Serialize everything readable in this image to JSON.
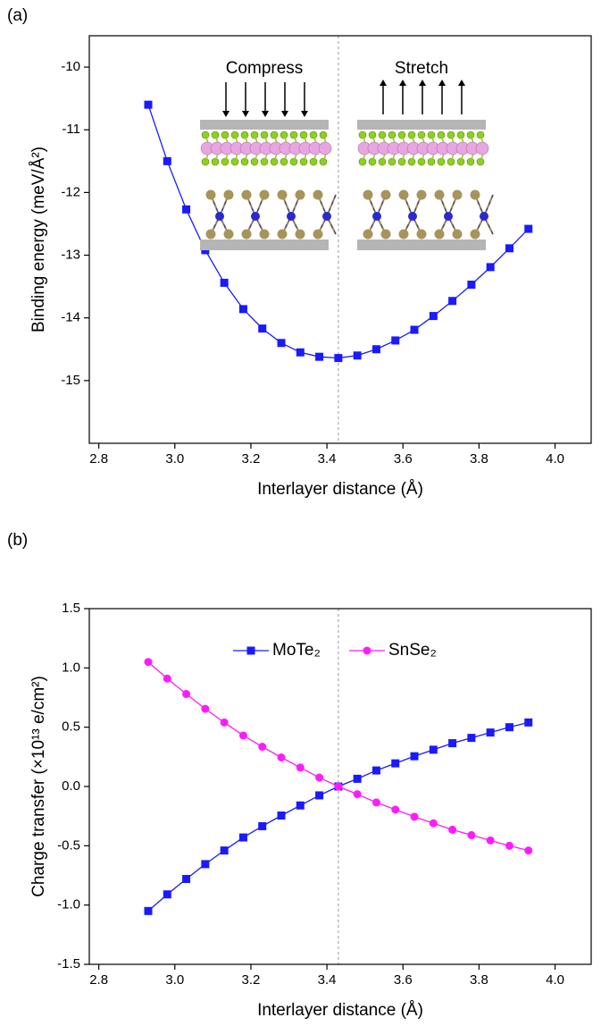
{
  "chart_data": [
    {
      "type": "line",
      "panel_label": "(a)",
      "x_label": "Interlayer distance (Å)",
      "y_label": "Binding energy (meV/Å²)",
      "annotations": [
        "Compress",
        "Stretch"
      ],
      "x": [
        2.93,
        2.98,
        3.03,
        3.08,
        3.13,
        3.18,
        3.23,
        3.28,
        3.33,
        3.38,
        3.43,
        3.48,
        3.53,
        3.58,
        3.63,
        3.68,
        3.73,
        3.78,
        3.83,
        3.88,
        3.93
      ],
      "values": [
        -10.6,
        -11.5,
        -12.27,
        -12.92,
        -13.44,
        -13.86,
        -14.17,
        -14.4,
        -14.55,
        -14.62,
        -14.64,
        -14.6,
        -14.5,
        -14.36,
        -14.19,
        -13.97,
        -13.73,
        -13.47,
        -13.19,
        -12.89,
        -12.58
      ],
      "color": "#1a1aff",
      "marker": "square",
      "vline": 3.43,
      "xlim": [
        2.775,
        4.095
      ],
      "xticks": [
        2.8,
        {
          "value": 3,
          "label": "3.0"
        },
        3.2,
        3.4,
        3.6,
        3.8,
        {
          "value": 4,
          "label": "4.0"
        }
      ],
      "ylim": [
        -16,
        -9.5
      ],
      "yticks": [
        -15,
        -14,
        -13,
        -12,
        -11,
        -10
      ]
    },
    {
      "type": "line",
      "panel_label": "(b)",
      "x_label": "Interlayer distance (Å)",
      "y_label": "Charge transfer (×10¹³ e/cm²)",
      "x": [
        2.93,
        2.98,
        3.03,
        3.08,
        3.13,
        3.18,
        3.23,
        3.28,
        3.33,
        3.38,
        3.43,
        3.48,
        3.53,
        3.58,
        3.63,
        3.68,
        3.73,
        3.78,
        3.83,
        3.88,
        3.93
      ],
      "series": [
        {
          "name": "MoTe₂",
          "color": "#1a1aff",
          "marker": "square",
          "values": [
            -1.05,
            -0.91,
            -0.78,
            -0.655,
            -0.54,
            -0.43,
            -0.335,
            -0.245,
            -0.16,
            -0.075,
            0,
            0.065,
            0.135,
            0.195,
            0.255,
            0.31,
            0.365,
            0.41,
            0.455,
            0.5,
            0.54
          ]
        },
        {
          "name": "SnSe₂",
          "color": "#ff1aff",
          "marker": "circle",
          "values": [
            1.05,
            0.91,
            0.78,
            0.655,
            0.54,
            0.43,
            0.335,
            0.245,
            0.16,
            0.075,
            0,
            -0.065,
            -0.135,
            -0.195,
            -0.255,
            -0.31,
            -0.365,
            -0.41,
            -0.455,
            -0.5,
            -0.54
          ]
        }
      ],
      "legend_position": "upper center",
      "vline": 3.43,
      "xlim": [
        2.775,
        4.095
      ],
      "xticks": [
        2.8,
        {
          "value": 3,
          "label": "3.0"
        },
        3.2,
        3.4,
        3.6,
        3.8,
        {
          "value": 4,
          "label": "4.0"
        }
      ],
      "ylim": [
        -1.5,
        1.5
      ],
      "yticks": [
        -1.5,
        {
          "value": -1,
          "label": "-1.0"
        },
        -0.5,
        {
          "value": 0,
          "label": "0.0"
        },
        0.5,
        {
          "value": 1,
          "label": "1.0"
        },
        1.5
      ]
    }
  ]
}
